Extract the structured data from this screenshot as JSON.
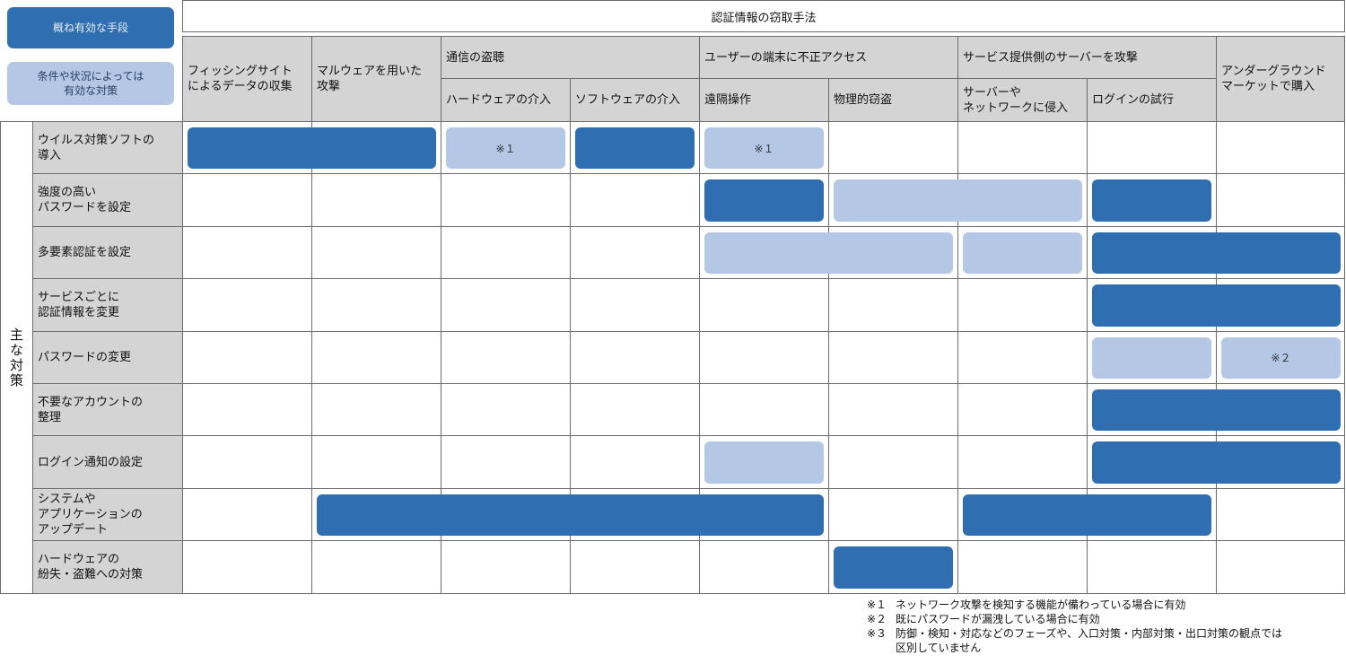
{
  "legend": {
    "effective": "概ね有効な手段",
    "conditional": "条件や状況によっては\n有効な対策"
  },
  "header": {
    "title": "認証情報の窃取手法",
    "groups": {
      "phishing": "フィッシングサイト\nによるデータの収集",
      "malware": "マルウェアを用いた\n攻撃",
      "eavesdrop": "通信の盗聴",
      "terminal": "ユーザーの端末に不正アクセス",
      "server": "サービス提供側のサーバーを攻撃",
      "underground": "アンダーグラウンド\nマーケットで購入"
    },
    "subcolumns": {
      "hardware": "ハードウェアの介入",
      "software": "ソフトウェアの介入",
      "remote": "遠隔操作",
      "theft": "物理的窃盗",
      "intrusion": "サーバーや\nネットワークに侵入",
      "login": "ログインの試行"
    }
  },
  "side_label": "主な対策",
  "rows": [
    "ウイルス対策ソフトの\n導入",
    "強度の高い\nパスワードを設定",
    "多要素認証を設定",
    "サービスごとに\n認証情報を変更",
    "パスワードの変更",
    "不要なアカウントの\n整理",
    "ログイン通知の設定",
    "システムや\nアプリケーションの\nアップデート",
    "ハードウェアの\n紛失・盗難への対策"
  ],
  "bars": [
    {
      "row": 0,
      "from": 0,
      "to": 1,
      "kind": "dark",
      "text": ""
    },
    {
      "row": 0,
      "from": 2,
      "to": 2,
      "kind": "light",
      "text": "※１"
    },
    {
      "row": 0,
      "from": 3,
      "to": 3,
      "kind": "dark",
      "text": ""
    },
    {
      "row": 0,
      "from": 4,
      "to": 4,
      "kind": "light",
      "text": "※１"
    },
    {
      "row": 1,
      "from": 4,
      "to": 4,
      "kind": "dark",
      "text": ""
    },
    {
      "row": 1,
      "from": 5,
      "to": 6,
      "kind": "light",
      "text": ""
    },
    {
      "row": 1,
      "from": 7,
      "to": 7,
      "kind": "dark",
      "text": ""
    },
    {
      "row": 2,
      "from": 4,
      "to": 5,
      "kind": "light",
      "text": ""
    },
    {
      "row": 2,
      "from": 6,
      "to": 6,
      "kind": "light",
      "text": ""
    },
    {
      "row": 2,
      "from": 7,
      "to": 8,
      "kind": "dark",
      "text": ""
    },
    {
      "row": 3,
      "from": 7,
      "to": 8,
      "kind": "dark",
      "text": ""
    },
    {
      "row": 4,
      "from": 7,
      "to": 7,
      "kind": "light",
      "text": ""
    },
    {
      "row": 4,
      "from": 8,
      "to": 8,
      "kind": "light",
      "text": "※２"
    },
    {
      "row": 5,
      "from": 7,
      "to": 8,
      "kind": "dark",
      "text": ""
    },
    {
      "row": 6,
      "from": 4,
      "to": 4,
      "kind": "light",
      "text": ""
    },
    {
      "row": 6,
      "from": 7,
      "to": 8,
      "kind": "dark",
      "text": ""
    },
    {
      "row": 7,
      "from": 1,
      "to": 4,
      "kind": "dark",
      "text": ""
    },
    {
      "row": 7,
      "from": 6,
      "to": 7,
      "kind": "dark",
      "text": ""
    },
    {
      "row": 8,
      "from": 5,
      "to": 5,
      "kind": "dark",
      "text": ""
    }
  ],
  "notes": {
    "n1_mark": "※１",
    "n1_text": "ネットワーク攻撃を検知する機能が備わっている場合に有効",
    "n2_mark": "※２",
    "n2_text": "既にパスワードが漏洩している場合に有効",
    "n3_mark": "※３",
    "n3_text": "防御・検知・対応などのフェーズや、入口対策・内部対策・出口対策の観点では",
    "n3_cont": "区別していません"
  },
  "colors": {
    "effective": "#2f6fb1",
    "conditional": "#b4c8e6",
    "header_gray": "#d4d4d4"
  }
}
